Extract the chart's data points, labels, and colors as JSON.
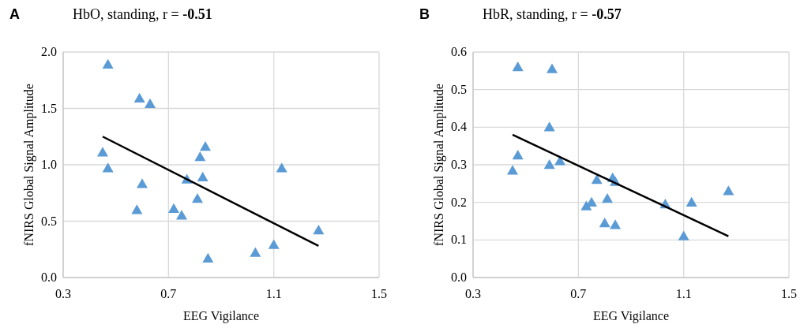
{
  "chart_data": [
    {
      "type": "scatter",
      "title": "HbO, standing, r = -0.51",
      "xlabel": "EEG Vigilance",
      "ylabel": "fNIRS Global Signal Amplitude",
      "annotations": [
        "A"
      ],
      "xlim": [
        0.3,
        1.5
      ],
      "xticks": [
        0.3,
        0.7,
        1.1,
        1.5
      ],
      "ylim": [
        0,
        2.0
      ],
      "yticks": [
        {
          "value": 0,
          "label": "0.0"
        },
        0.5,
        {
          "value": 1,
          "label": "1.0"
        },
        1.5,
        {
          "value": 2,
          "label": "2.0"
        }
      ],
      "grid": true,
      "series": [
        {
          "color": "#5b9bd5",
          "marker": "triangle",
          "x": [
            0.47,
            0.45,
            0.47,
            0.59,
            0.63,
            0.6,
            0.58,
            0.72,
            0.75,
            0.77,
            0.81,
            0.82,
            0.83,
            0.84,
            0.85,
            1.03,
            1.1,
            1.13,
            1.27
          ],
          "values": [
            1.89,
            1.11,
            0.97,
            1.59,
            1.54,
            0.83,
            0.6,
            0.61,
            0.55,
            0.87,
            0.7,
            1.07,
            0.89,
            1.16,
            0.17,
            0.22,
            0.29,
            0.97,
            0.42
          ]
        },
        {
          "type": "line",
          "color": "#000000",
          "marker": "none",
          "x": [
            0.45,
            1.27
          ],
          "values": [
            1.25,
            0.28
          ]
        }
      ]
    },
    {
      "type": "scatter",
      "title": "HbR, standing, r = -0.57",
      "xlabel": "EEG Vigilance",
      "ylabel": "fNIRS Global Signal Amplitude",
      "annotations": [
        "B"
      ],
      "xlim": [
        0.3,
        1.5
      ],
      "xticks": [
        0.3,
        0.7,
        1.1,
        1.5
      ],
      "ylim": [
        0,
        0.6
      ],
      "yticks": [
        {
          "value": 0,
          "label": "0.0"
        },
        0.1,
        0.2,
        0.3,
        0.4,
        0.5,
        0.6
      ],
      "grid": true,
      "series": [
        {
          "color": "#5b9bd5",
          "marker": "triangle",
          "x": [
            0.47,
            0.6,
            0.47,
            0.45,
            0.59,
            0.59,
            0.63,
            0.77,
            0.73,
            0.75,
            0.81,
            0.83,
            0.84,
            0.8,
            0.84,
            1.03,
            1.1,
            1.13,
            1.27
          ],
          "values": [
            0.56,
            0.555,
            0.325,
            0.285,
            0.4,
            0.3,
            0.31,
            0.26,
            0.19,
            0.2,
            0.21,
            0.265,
            0.255,
            0.145,
            0.14,
            0.195,
            0.11,
            0.2,
            0.23
          ]
        },
        {
          "type": "line",
          "color": "#000000",
          "marker": "none",
          "x": [
            0.45,
            1.27
          ],
          "values": [
            0.38,
            0.11
          ]
        }
      ]
    }
  ]
}
